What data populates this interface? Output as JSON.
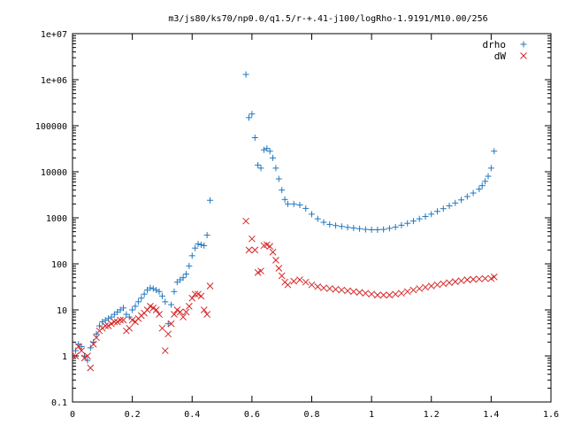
{
  "chart_data": {
    "type": "scatter",
    "title": "m3/js80/ks70/np0.0/q1.5/r-+.41-j100/logRho-1.9191/M10.00/256",
    "xlabel": "",
    "ylabel": "",
    "xlim": [
      0,
      1.6
    ],
    "ylim": [
      0.1,
      10000000
    ],
    "yscale": "log",
    "grid": false,
    "legend_position": "top-right",
    "x_ticks": [
      "0",
      "0.2",
      "0.4",
      "0.6",
      "0.8",
      "1",
      "1.2",
      "1.4",
      "1.6"
    ],
    "y_ticks": [
      "0.1",
      "1",
      "10",
      "100",
      "1000",
      "10000",
      "100000",
      "1e+06",
      "1e+07"
    ],
    "series": [
      {
        "name": "drho",
        "marker": "plus",
        "color": "#1f77c0",
        "points": [
          [
            0.01,
            1.3
          ],
          [
            0.02,
            1.8
          ],
          [
            0.03,
            1.6
          ],
          [
            0.04,
            1.0
          ],
          [
            0.05,
            0.8
          ],
          [
            0.06,
            1.5
          ],
          [
            0.07,
            2.0
          ],
          [
            0.08,
            3.0
          ],
          [
            0.09,
            4.5
          ],
          [
            0.1,
            5.5
          ],
          [
            0.11,
            6.0
          ],
          [
            0.12,
            6.5
          ],
          [
            0.13,
            7.0
          ],
          [
            0.14,
            8.0
          ],
          [
            0.15,
            9.0
          ],
          [
            0.16,
            10
          ],
          [
            0.17,
            11
          ],
          [
            0.18,
            8.0
          ],
          [
            0.19,
            7.0
          ],
          [
            0.2,
            10
          ],
          [
            0.21,
            12
          ],
          [
            0.22,
            15
          ],
          [
            0.23,
            18
          ],
          [
            0.24,
            22
          ],
          [
            0.25,
            27
          ],
          [
            0.26,
            30
          ],
          [
            0.27,
            29
          ],
          [
            0.28,
            27
          ],
          [
            0.29,
            25
          ],
          [
            0.3,
            20
          ],
          [
            0.31,
            15
          ],
          [
            0.32,
            5.0
          ],
          [
            0.33,
            13
          ],
          [
            0.34,
            25
          ],
          [
            0.35,
            40
          ],
          [
            0.36,
            45
          ],
          [
            0.37,
            50
          ],
          [
            0.38,
            60
          ],
          [
            0.39,
            90
          ],
          [
            0.4,
            150
          ],
          [
            0.41,
            220
          ],
          [
            0.42,
            270
          ],
          [
            0.43,
            260
          ],
          [
            0.44,
            250
          ],
          [
            0.45,
            420
          ],
          [
            0.46,
            2400
          ],
          [
            0.58,
            1300000
          ],
          [
            0.59,
            150000
          ],
          [
            0.6,
            180000
          ],
          [
            0.61,
            55000
          ],
          [
            0.62,
            14000
          ],
          [
            0.63,
            12000
          ],
          [
            0.64,
            30000
          ],
          [
            0.65,
            32000
          ],
          [
            0.66,
            28000
          ],
          [
            0.67,
            20000
          ],
          [
            0.68,
            12000
          ],
          [
            0.69,
            7000
          ],
          [
            0.7,
            4000
          ],
          [
            0.71,
            2500
          ],
          [
            0.72,
            2000
          ],
          [
            0.74,
            2000
          ],
          [
            0.76,
            1900
          ],
          [
            0.78,
            1600
          ],
          [
            0.8,
            1200
          ],
          [
            0.82,
            950
          ],
          [
            0.84,
            800
          ],
          [
            0.86,
            720
          ],
          [
            0.88,
            680
          ],
          [
            0.9,
            650
          ],
          [
            0.92,
            620
          ],
          [
            0.94,
            600
          ],
          [
            0.96,
            580
          ],
          [
            0.98,
            560
          ],
          [
            1.0,
            550
          ],
          [
            1.02,
            550
          ],
          [
            1.04,
            560
          ],
          [
            1.06,
            590
          ],
          [
            1.08,
            630
          ],
          [
            1.1,
            690
          ],
          [
            1.12,
            760
          ],
          [
            1.14,
            850
          ],
          [
            1.16,
            950
          ],
          [
            1.18,
            1070
          ],
          [
            1.2,
            1200
          ],
          [
            1.22,
            1380
          ],
          [
            1.24,
            1580
          ],
          [
            1.26,
            1820
          ],
          [
            1.28,
            2100
          ],
          [
            1.3,
            2450
          ],
          [
            1.32,
            2900
          ],
          [
            1.34,
            3450
          ],
          [
            1.36,
            4200
          ],
          [
            1.37,
            5000
          ],
          [
            1.38,
            6200
          ],
          [
            1.39,
            8000
          ],
          [
            1.4,
            12000
          ],
          [
            1.41,
            28000
          ]
        ]
      },
      {
        "name": "dW",
        "marker": "cross",
        "color": "#d62728",
        "points": [
          [
            0.01,
            1.0
          ],
          [
            0.02,
            1.6
          ],
          [
            0.03,
            1.3
          ],
          [
            0.04,
            0.9
          ],
          [
            0.05,
            1.0
          ],
          [
            0.06,
            0.55
          ],
          [
            0.07,
            1.8
          ],
          [
            0.08,
            2.5
          ],
          [
            0.09,
            3.5
          ],
          [
            0.1,
            4.0
          ],
          [
            0.11,
            4.5
          ],
          [
            0.12,
            4.5
          ],
          [
            0.13,
            5.0
          ],
          [
            0.14,
            5.5
          ],
          [
            0.15,
            5.5
          ],
          [
            0.16,
            6.0
          ],
          [
            0.17,
            6.0
          ],
          [
            0.18,
            3.5
          ],
          [
            0.19,
            4.0
          ],
          [
            0.2,
            6.0
          ],
          [
            0.21,
            5.5
          ],
          [
            0.22,
            6.5
          ],
          [
            0.23,
            7.5
          ],
          [
            0.24,
            8.5
          ],
          [
            0.25,
            10
          ],
          [
            0.26,
            12
          ],
          [
            0.27,
            11
          ],
          [
            0.28,
            10
          ],
          [
            0.29,
            8.0
          ],
          [
            0.3,
            4.0
          ],
          [
            0.31,
            1.3
          ],
          [
            0.32,
            3.0
          ],
          [
            0.33,
            5.0
          ],
          [
            0.34,
            8.0
          ],
          [
            0.35,
            10
          ],
          [
            0.36,
            9.0
          ],
          [
            0.37,
            7.0
          ],
          [
            0.38,
            9.0
          ],
          [
            0.39,
            12
          ],
          [
            0.4,
            18
          ],
          [
            0.41,
            22
          ],
          [
            0.42,
            22
          ],
          [
            0.43,
            20
          ],
          [
            0.44,
            10
          ],
          [
            0.45,
            8.0
          ],
          [
            0.46,
            33
          ],
          [
            0.58,
            850
          ],
          [
            0.59,
            200
          ],
          [
            0.6,
            350
          ],
          [
            0.61,
            200
          ],
          [
            0.62,
            65
          ],
          [
            0.63,
            70
          ],
          [
            0.64,
            250
          ],
          [
            0.65,
            260
          ],
          [
            0.66,
            240
          ],
          [
            0.67,
            180
          ],
          [
            0.68,
            120
          ],
          [
            0.69,
            80
          ],
          [
            0.7,
            55
          ],
          [
            0.71,
            40
          ],
          [
            0.72,
            35
          ],
          [
            0.74,
            42
          ],
          [
            0.76,
            45
          ],
          [
            0.78,
            40
          ],
          [
            0.8,
            35
          ],
          [
            0.82,
            32
          ],
          [
            0.84,
            30
          ],
          [
            0.86,
            29
          ],
          [
            0.88,
            28
          ],
          [
            0.9,
            27
          ],
          [
            0.92,
            26
          ],
          [
            0.94,
            25
          ],
          [
            0.96,
            24
          ],
          [
            0.98,
            23
          ],
          [
            1.0,
            22
          ],
          [
            1.02,
            21
          ],
          [
            1.04,
            21
          ],
          [
            1.06,
            21
          ],
          [
            1.08,
            22
          ],
          [
            1.1,
            23
          ],
          [
            1.12,
            25
          ],
          [
            1.14,
            27
          ],
          [
            1.16,
            29
          ],
          [
            1.18,
            31
          ],
          [
            1.2,
            33
          ],
          [
            1.22,
            35
          ],
          [
            1.24,
            37
          ],
          [
            1.26,
            39
          ],
          [
            1.28,
            41
          ],
          [
            1.3,
            43
          ],
          [
            1.32,
            45
          ],
          [
            1.34,
            46
          ],
          [
            1.36,
            47
          ],
          [
            1.38,
            48
          ],
          [
            1.4,
            48
          ],
          [
            1.41,
            52
          ]
        ]
      }
    ]
  }
}
